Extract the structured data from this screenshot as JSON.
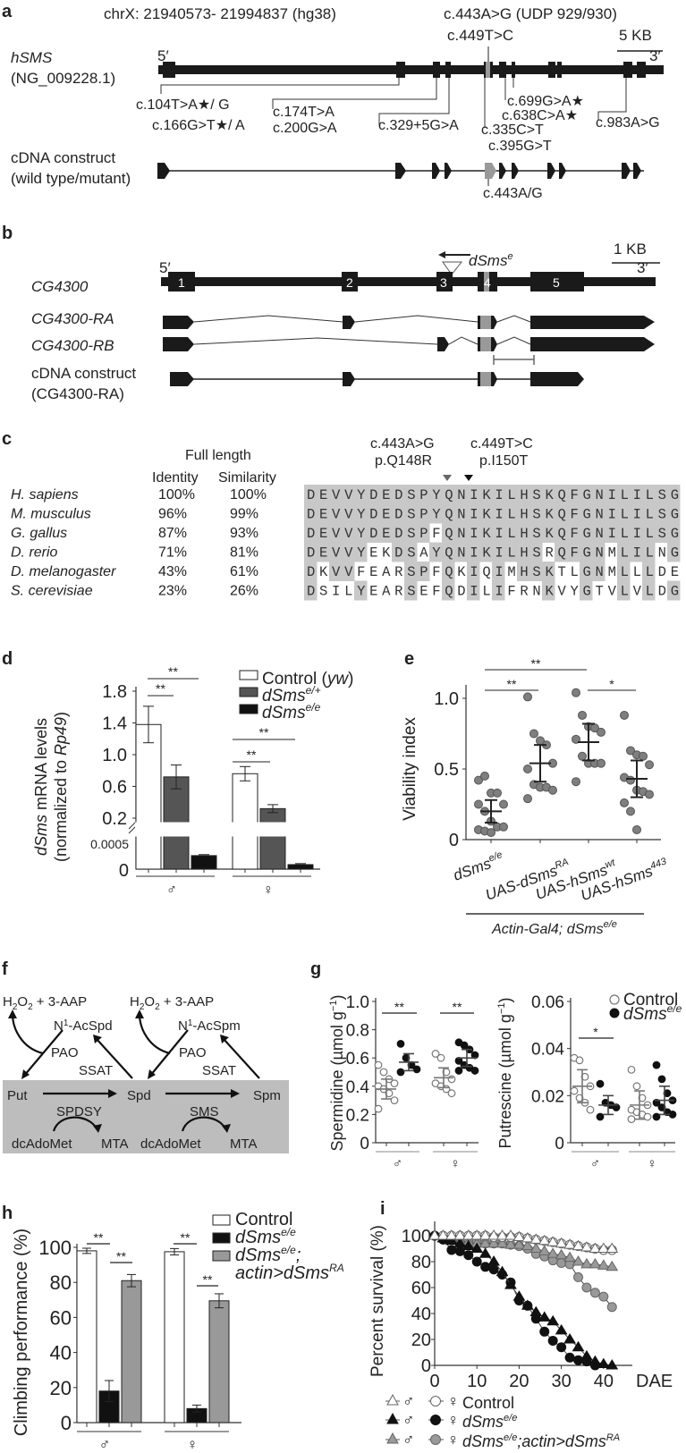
{
  "panels": {
    "a": {
      "label": "a",
      "coords": "chrX: 21940573- 21994837 (hg38)",
      "variant_top_1": "c.443A>G (UDP 929/930)",
      "variant_top_2": "c.449T>C",
      "scale": "5 KB",
      "gene": "hSMS",
      "gene_ref": "(NG_009228.1)",
      "five": "5′",
      "three": "3′",
      "variants": [
        "c.104T>A★/ G",
        "c.166G>T★/ A",
        "c.174T>A",
        "c.200G>A",
        "c.329+5G>A",
        "c.335C>T",
        "c.395G>T",
        "c.699G>A★",
        "c.638C>A★",
        "c.983A>G"
      ],
      "cdna_1": "cDNA construct",
      "cdna_2": "(wild type/mutant)",
      "cdna_var": "c.443A/G"
    },
    "b": {
      "label": "b",
      "scale": "1 KB",
      "allele": "dSms",
      "allele_sup": "e",
      "five": "5′",
      "three": "3′",
      "gene": "CG4300",
      "tx_ra": "CG4300-RA",
      "tx_rb": "CG4300-RB",
      "cdna_1": "cDNA construct",
      "cdna_2": "(CG4300-RA)",
      "exons": [
        "1",
        "2",
        "3",
        "4",
        "5"
      ]
    },
    "c": {
      "label": "c",
      "header_full": "Full length",
      "header_identity": "Identity",
      "header_similarity": "Similarity",
      "mut1_c": "c.443A>G",
      "mut1_p": "p.Q148R",
      "mut2_c": "c.449T>C",
      "mut2_p": "p.I150T",
      "rows": [
        {
          "species": "H. sapiens",
          "identity": "100%",
          "similarity": "100%",
          "seq": "DEVVYDEDSPYQNIKILHSKQFGNILILSG"
        },
        {
          "species": "M. musculus",
          "identity": "96%",
          "similarity": "99%",
          "seq": "DEVVYDEDSPYQNIKILHSKQFGNILILSG"
        },
        {
          "species": "G. gallus",
          "identity": "87%",
          "similarity": "93%",
          "seq": "DEVVYDEDSPFQNIKILHSKQFGNILILSG"
        },
        {
          "species": "D. rerio",
          "identity": "71%",
          "similarity": "81%",
          "seq": "DEVVYEKDSAYQNIKILHSRQFGNMLILNG"
        },
        {
          "species": "D. melanogaster",
          "identity": "43%",
          "similarity": "61%",
          "seq": "DKVVFEARSPFQKIQIMHSKTLGNMLLLDE"
        },
        {
          "species": "S. cerevisiae",
          "identity": "23%",
          "similarity": "26%",
          "seq": "DSILYEARSEFQDILIFRNKVYGTVLVLDG"
        }
      ]
    },
    "f": {
      "label": "f",
      "h2o2_left": "H2O2 + 3-AAP",
      "h2o2_right": "H2O2 + 3-AAP",
      "acspd": "N1-AcSpd",
      "acspm": "N1-AcSpm",
      "pao": "PAO",
      "ssat": "SSAT",
      "put": "Put",
      "spd": "Spd",
      "spm": "Spm",
      "spdsy": "SPDSY",
      "sms": "SMS",
      "dcadomet": "dcAdoMet",
      "mta": "MTA"
    }
  },
  "chart_data": [
    {
      "panel": "d",
      "type": "bar",
      "ylabel": "dSms mRNA levels (normalized to Rp49)",
      "categories": [
        "♂",
        "♀"
      ],
      "yticks_upper": [
        "1.8",
        "1.4",
        "1.0",
        "0.6",
        "0.2"
      ],
      "yticks_lower": [
        "0.0005",
        "0"
      ],
      "axis_break": true,
      "series": [
        {
          "name": "Control (yw)",
          "color": "#ffffff",
          "values": [
            1.38,
            0.76
          ],
          "err": [
            0.23,
            0.09
          ]
        },
        {
          "name": "dSms e/+",
          "color": "#555555",
          "values": [
            0.72,
            0.32
          ],
          "err": [
            0.15,
            0.05
          ]
        },
        {
          "name": "dSms e/e",
          "color": "#111111",
          "values": [
            0.00027,
            9e-05
          ],
          "err": [
            2e-05,
            2e-05
          ]
        }
      ],
      "significance": [
        "**",
        "**",
        "**",
        "**"
      ]
    },
    {
      "panel": "e",
      "type": "scatter",
      "ylabel": "Viability index",
      "yticks": [
        "0",
        "0.5",
        "1.0"
      ],
      "ylim": [
        0,
        1.1
      ],
      "categories": [
        "dSms e/e",
        "UAS-dSms RA",
        "UAS-hSms wt",
        "UAS-hSms 443"
      ],
      "group_label": "Actin-Gal4; dSms e/e",
      "means": [
        0.2,
        0.54,
        0.69,
        0.43
      ],
      "sd": [
        0.08,
        0.13,
        0.13,
        0.13
      ],
      "points": [
        [
          0.42,
          0.45,
          0.33,
          0.33,
          0.25,
          0.25,
          0.2,
          0.13,
          0.09,
          0.09,
          0.07,
          0.06,
          0.05
        ],
        [
          1.01,
          0.75,
          0.7,
          0.67,
          0.54,
          0.5,
          0.39,
          0.37,
          0.37,
          0.35,
          0.29
        ],
        [
          1.04,
          0.88,
          0.8,
          0.79,
          0.76,
          0.71,
          0.59,
          0.54,
          0.54,
          0.54,
          0.41
        ],
        [
          0.88,
          0.63,
          0.6,
          0.59,
          0.53,
          0.44,
          0.42,
          0.35,
          0.34,
          0.32,
          0.26,
          0.2,
          0.07
        ]
      ],
      "significance": [
        "**",
        "**",
        "*"
      ]
    },
    {
      "panel": "g-left",
      "type": "scatter",
      "ylabel": "Spermidine (µmol g−1)",
      "yticks": [
        "0",
        "0.2",
        "0.4",
        "0.6",
        "0.8",
        "1.0"
      ],
      "ylim": [
        0,
        1.0
      ],
      "categories": [
        "♂",
        "♀"
      ],
      "series": [
        {
          "name": "Control",
          "points": [
            [
              0.55,
              0.5,
              0.45,
              0.42,
              0.4,
              0.38,
              0.35,
              0.3,
              0.24
            ],
            [
              0.63,
              0.6,
              0.5,
              0.45,
              0.42,
              0.4,
              0.38,
              0.35
            ]
          ],
          "means": [
            0.38,
            0.46
          ],
          "sd": [
            0.07,
            0.07
          ]
        },
        {
          "name": "dSms e/e",
          "points": [
            [
              0.7,
              0.6,
              0.55,
              0.52,
              0.5
            ],
            [
              0.71,
              0.69,
              0.66,
              0.62,
              0.58,
              0.55,
              0.53,
              0.51,
              0.51
            ]
          ],
          "means": [
            0.57,
            0.6
          ],
          "sd": [
            0.06,
            0.06
          ]
        }
      ],
      "significance": [
        "**",
        "**"
      ]
    },
    {
      "panel": "g-right",
      "type": "scatter",
      "ylabel": "Putrescine (µmol g−1)",
      "yticks": [
        "0",
        "0.02",
        "0.04",
        "0.06"
      ],
      "ylim": [
        0,
        0.06
      ],
      "legend": [
        "Control",
        "dSms e/e"
      ],
      "categories": [
        "♂",
        "♀"
      ],
      "series": [
        {
          "name": "Control",
          "points": [
            [
              0.036,
              0.035,
              0.028,
              0.024,
              0.022,
              0.019,
              0.017,
              0.014
            ],
            [
              0.031,
              0.024,
              0.019,
              0.016,
              0.014,
              0.013,
              0.012,
              0.011,
              0.01
            ]
          ],
          "means": [
            0.024,
            0.016
          ],
          "sd": [
            0.007,
            0.006
          ]
        },
        {
          "name": "dSms e/e",
          "points": [
            [
              0.025,
              0.017,
              0.016,
              0.015,
              0.011
            ],
            [
              0.033,
              0.027,
              0.021,
              0.018,
              0.017,
              0.015,
              0.013,
              0.012,
              0.011
            ]
          ],
          "means": [
            0.016,
            0.018
          ],
          "sd": [
            0.004,
            0.006
          ]
        }
      ],
      "significance": [
        "*"
      ]
    },
    {
      "panel": "h",
      "type": "bar",
      "ylabel": "Climbing performance (%)",
      "yticks": [
        "0",
        "20",
        "40",
        "60",
        "80",
        "100"
      ],
      "ylim": [
        0,
        100
      ],
      "categories": [
        "♂",
        "♀"
      ],
      "series": [
        {
          "name": "Control",
          "color": "#ffffff",
          "values": [
            98,
            97.5
          ],
          "err": [
            1.5,
            1.8
          ]
        },
        {
          "name": "dSms e/e",
          "color": "#111111",
          "values": [
            18,
            8
          ],
          "err": [
            6,
            2
          ]
        },
        {
          "name": "dSms e/e; actin>dSms RA",
          "color": "#999999",
          "values": [
            81,
            69.5
          ],
          "err": [
            3.5,
            4
          ]
        }
      ],
      "significance": [
        "**",
        "**",
        "**",
        "**"
      ]
    },
    {
      "panel": "i",
      "type": "line",
      "xlabel": "DAE",
      "ylabel": "Percent survival (%)",
      "xticks": [
        "0",
        "10",
        "20",
        "30",
        "40"
      ],
      "yticks": [
        "0",
        "20",
        "40",
        "60",
        "80",
        "100"
      ],
      "xlim": [
        0,
        45
      ],
      "ylim": [
        0,
        110
      ],
      "x": [
        0,
        2,
        4,
        6,
        8,
        10,
        12,
        14,
        16,
        18,
        20,
        22,
        24,
        26,
        28,
        30,
        32,
        34,
        36,
        38,
        40,
        42
      ],
      "series": [
        {
          "name": "Control ♂",
          "marker": "triangle-open",
          "values": [
            100,
            100,
            100,
            100,
            100,
            100,
            100,
            100,
            100,
            100,
            99,
            98,
            97,
            96,
            95,
            94,
            93,
            92,
            91,
            90,
            90,
            90
          ]
        },
        {
          "name": "Control ♀",
          "marker": "circle-open",
          "values": [
            100,
            100,
            100,
            100,
            100,
            100,
            100,
            99,
            99,
            99,
            99,
            98,
            97,
            96,
            95,
            94,
            93,
            92,
            91,
            90,
            89,
            89
          ]
        },
        {
          "name": "dSms e/e ♂",
          "marker": "triangle-filled",
          "values": [
            100,
            98,
            96,
            94,
            92,
            90,
            86,
            80,
            72,
            62,
            53,
            46,
            41,
            37,
            34,
            27,
            20,
            14,
            7,
            3,
            1,
            0
          ]
        },
        {
          "name": "dSms e/e ♀",
          "marker": "circle-filled",
          "values": [
            100,
            97,
            89,
            88,
            85,
            80,
            76,
            74,
            70,
            64,
            50,
            46,
            36,
            26,
            19,
            14,
            6,
            4,
            3,
            0,
            null,
            null
          ]
        },
        {
          "name": "dSms e/e; actin>dSms RA ♂",
          "marker": "triangle-gray",
          "values": [
            100,
            98,
            97,
            96,
            95,
            94,
            94,
            94,
            94,
            93,
            93,
            92,
            90,
            88,
            86,
            85,
            83,
            80,
            78,
            78,
            77,
            76
          ]
        },
        {
          "name": "dSms e/e; actin>dSms RA ♀",
          "marker": "circle-gray",
          "values": [
            100,
            99,
            98,
            97,
            96,
            95,
            94,
            94,
            94,
            93,
            92,
            90,
            86,
            84,
            81,
            79,
            78,
            68,
            60,
            56,
            53,
            45
          ]
        }
      ],
      "legend": [
        {
          "male": "♂",
          "female": "♀",
          "label": "Control"
        },
        {
          "male": "♂",
          "female": "♀",
          "label": "dSms e/e"
        },
        {
          "male": "♂",
          "female": "♀",
          "label": "dSms e/e;actin>dSms RA"
        }
      ]
    }
  ]
}
